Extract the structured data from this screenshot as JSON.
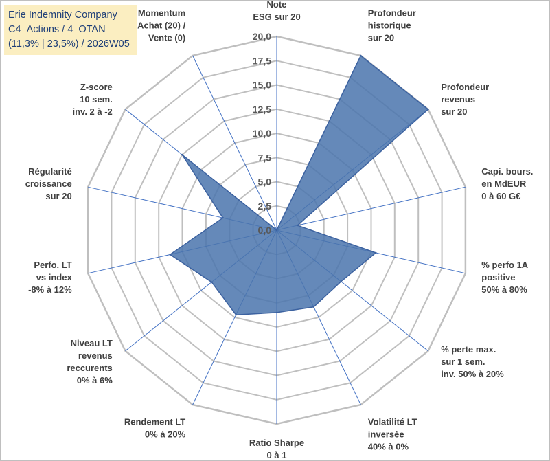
{
  "title_box": {
    "line1": "Erie Indemnity Company",
    "line2": "C4_Actions / 4_OTAN",
    "line3": "(11,3% | 23,5%) / 2026W05"
  },
  "colors": {
    "fill": "#4a74ad",
    "stroke": "#3c62a0",
    "grid": "#bfbfbf",
    "spoke": "#4472c4",
    "title_bg": "#fbeec1",
    "title_text": "#1f3f78"
  },
  "chart_data": {
    "type": "radar",
    "range": [
      0,
      20
    ],
    "tick_step": 2.5,
    "tick_labels": [
      "0,0",
      "2,5",
      "5,0",
      "7,5",
      "10,0",
      "12,5",
      "15,0",
      "17,5",
      "20,0"
    ],
    "axes": [
      {
        "label": [
          "Note",
          "ESG sur 20"
        ],
        "value": 0
      },
      {
        "label": [
          "Profondeur",
          "historique",
          "sur 20"
        ],
        "value": 20
      },
      {
        "label": [
          "Profondeur",
          "revenus",
          "sur 20"
        ],
        "value": 20
      },
      {
        "label": [
          "Capi. bours.",
          "en MdEUR",
          "0 à 60 G€"
        ],
        "value": 2.2
      },
      {
        "label": [
          "% perfo 1A",
          "positive",
          "50% à 80%"
        ],
        "value": 10.5
      },
      {
        "label": [
          "% perte max.",
          "sur 1 sem.",
          "inv. 50% à 20%"
        ],
        "value": 8.5
      },
      {
        "label": [
          "Volatilité LT",
          "inversée",
          "40% à 0%"
        ],
        "value": 8.8
      },
      {
        "label": [
          "Ratio Sharpe",
          "0 à 1"
        ],
        "value": 8.5
      },
      {
        "label": [
          "Rendement LT",
          "0% à 20%"
        ],
        "value": 9.7
      },
      {
        "label": [
          "Niveau LT",
          "revenus",
          "reccurents",
          "0% à 6%"
        ],
        "value": 8.6
      },
      {
        "label": [
          "Perfo. LT",
          "vs index",
          "-8% à 12%"
        ],
        "value": 11.3
      },
      {
        "label": [
          "Régularité",
          "croissance",
          "sur 20"
        ],
        "value": 5.7
      },
      {
        "label": [
          "Z-score",
          "10 sem.",
          "inv. 2 à -2"
        ],
        "value": 12.5
      },
      {
        "label": [
          "Momentum",
          "Achat (20) /",
          "Vente (0)"
        ],
        "value": 0
      }
    ]
  }
}
